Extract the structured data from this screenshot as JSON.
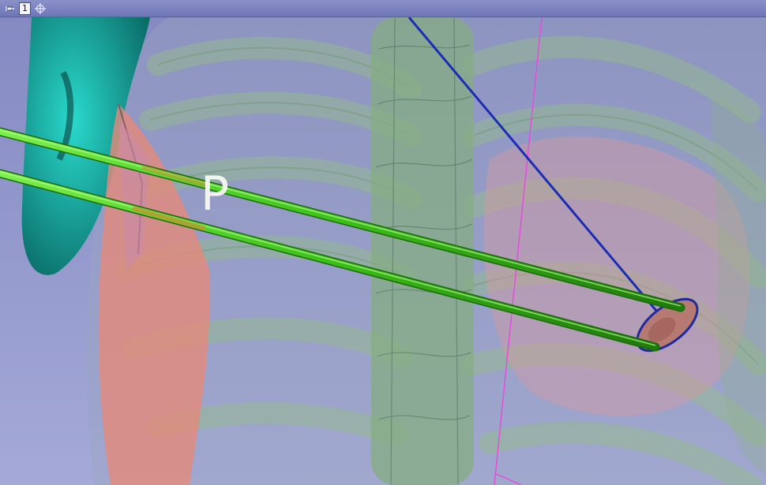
{
  "viewer": {
    "view_number": "1",
    "orientation_marker": "P"
  },
  "colors": {
    "background": "#7d83b8",
    "bone": "#8fb08e",
    "needle": "#3fcc1f",
    "lesion": "#e58a7a",
    "cyan_structure": "#12a9a0",
    "probe_line": "#1c2db5",
    "slice_plane": "#e64cdb"
  },
  "icons": {
    "pin": "pin-icon",
    "center": "crosshair-icon"
  }
}
